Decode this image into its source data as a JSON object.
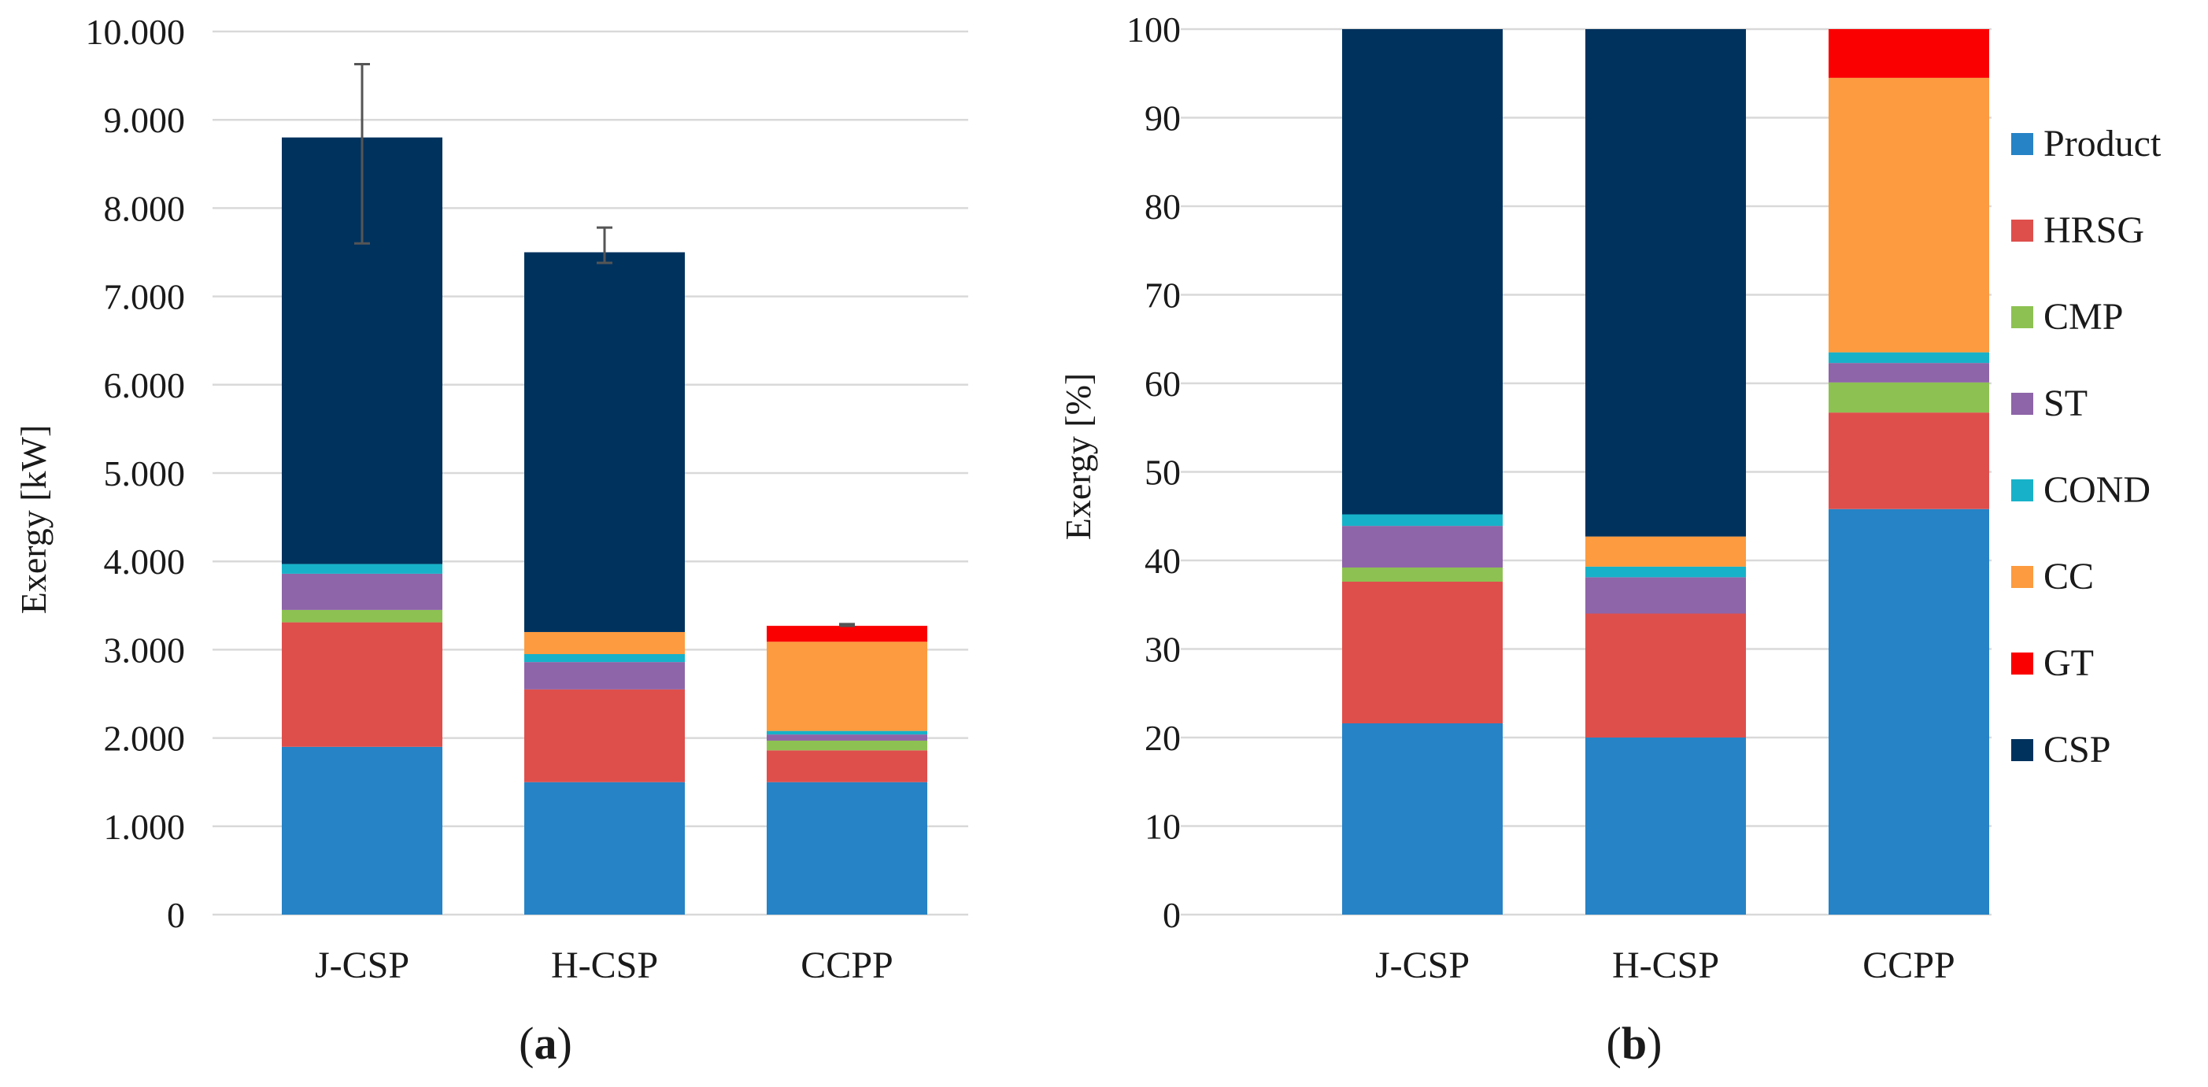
{
  "colors": {
    "Product": "#2683C6",
    "HRSG": "#DE4F4C",
    "CMP": "#8DC152",
    "ST": "#8E65A8",
    "COND": "#17B2C9",
    "CC": "#FC9B3F",
    "GT": "#FA0000",
    "CSP": "#00325E",
    "grid": "#d9d9d9",
    "errorbar": "#555555"
  },
  "legend": {
    "items": [
      "Product",
      "HRSG",
      "CMP",
      "ST",
      "COND",
      "CC",
      "GT",
      "CSP"
    ]
  },
  "chart_data": [
    {
      "type": "bar",
      "stacked": true,
      "panel_label": {
        "open": "(",
        "letter": "a",
        "close": ")"
      },
      "ylabel": "Exergy [kW]",
      "xlabel": "",
      "ylim": [
        0,
        10000
      ],
      "yticks": [
        0,
        1000,
        2000,
        3000,
        4000,
        5000,
        6000,
        7000,
        8000,
        9000,
        10000
      ],
      "ytick_labels": [
        "0",
        "1.000",
        "2.000",
        "3.000",
        "4.000",
        "5.000",
        "6.000",
        "7.000",
        "8.000",
        "9.000",
        "10.000"
      ],
      "grid": true,
      "categories": [
        "J-CSP",
        "H-CSP",
        "CCPP"
      ],
      "series": [
        {
          "name": "Product",
          "values": [
            1900,
            1500,
            1500
          ]
        },
        {
          "name": "HRSG",
          "values": [
            1410,
            1050,
            360
          ]
        },
        {
          "name": "CMP",
          "values": [
            140,
            0,
            110
          ]
        },
        {
          "name": "ST",
          "values": [
            410,
            310,
            70
          ]
        },
        {
          "name": "COND",
          "values": [
            110,
            90,
            40
          ]
        },
        {
          "name": "CC",
          "values": [
            0,
            250,
            1010
          ]
        },
        {
          "name": "GT",
          "values": [
            0,
            0,
            180
          ]
        },
        {
          "name": "CSP",
          "values": [
            4830,
            4300,
            0
          ]
        }
      ],
      "error_bars": [
        {
          "category": "J-CSP",
          "top": 9630,
          "bottom": 7600
        },
        {
          "category": "H-CSP",
          "top": 7780,
          "bottom": 7380
        },
        {
          "category": "CCPP",
          "top": 3290,
          "bottom": 3270
        }
      ]
    },
    {
      "type": "bar",
      "stacked": true,
      "panel_label": {
        "open": "(",
        "letter": "b",
        "close": ")"
      },
      "ylabel": "Exergy [%]",
      "xlabel": "",
      "ylim": [
        0,
        100
      ],
      "yticks": [
        0,
        10,
        20,
        30,
        40,
        50,
        60,
        70,
        80,
        90,
        100
      ],
      "ytick_labels": [
        "0",
        "10",
        "20",
        "30",
        "40",
        "50",
        "60",
        "70",
        "80",
        "90",
        "100"
      ],
      "grid": true,
      "legend_position": "right",
      "categories": [
        "J-CSP",
        "H-CSP",
        "CCPP"
      ],
      "series": [
        {
          "name": "Product",
          "values": [
            21.6,
            20.0,
            45.8
          ]
        },
        {
          "name": "HRSG",
          "values": [
            16.0,
            14.0,
            10.9
          ]
        },
        {
          "name": "CMP",
          "values": [
            1.6,
            0,
            3.4
          ]
        },
        {
          "name": "ST",
          "values": [
            4.7,
            4.1,
            2.2
          ]
        },
        {
          "name": "COND",
          "values": [
            1.3,
            1.2,
            1.2
          ]
        },
        {
          "name": "CC",
          "values": [
            0,
            3.4,
            31.0
          ]
        },
        {
          "name": "GT",
          "values": [
            0,
            0,
            5.5
          ]
        },
        {
          "name": "CSP",
          "values": [
            54.8,
            57.3,
            0
          ]
        }
      ]
    }
  ]
}
